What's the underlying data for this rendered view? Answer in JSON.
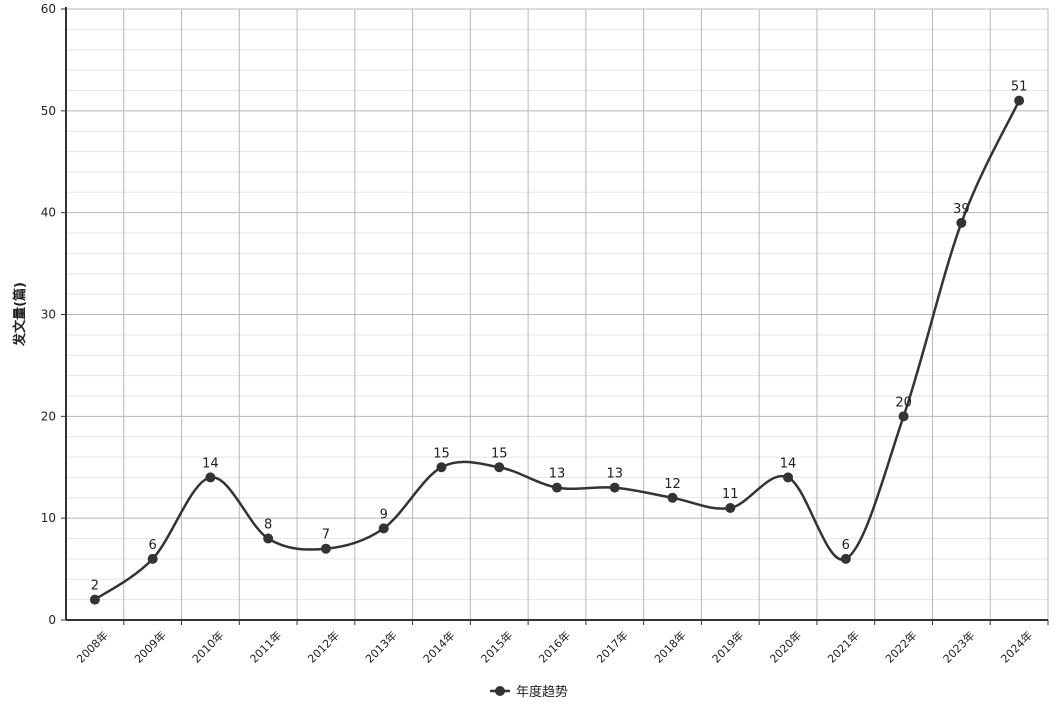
{
  "chart_data": {
    "type": "line",
    "title": "",
    "xlabel": "",
    "ylabel": "发文量(篇)",
    "categories": [
      "2008年",
      "2009年",
      "2010年",
      "2011年",
      "2012年",
      "2013年",
      "2014年",
      "2015年",
      "2016年",
      "2017年",
      "2018年",
      "2019年",
      "2020年",
      "2021年",
      "2022年",
      "2023年",
      "2024年"
    ],
    "series": [
      {
        "name": "年度趋势",
        "values": [
          2,
          6,
          14,
          8,
          7,
          9,
          15,
          15,
          13,
          13,
          12,
          11,
          14,
          6,
          20,
          39,
          51
        ]
      }
    ],
    "data_labels": [
      "2",
      "6",
      "14",
      "8",
      "7",
      "9",
      "15",
      "15",
      "13",
      "13",
      "12",
      "11",
      "14",
      "6",
      "20",
      "39",
      "51"
    ],
    "ylim": [
      0,
      60
    ],
    "yticks": [
      "0",
      "10",
      "20",
      "30",
      "40",
      "50",
      "60"
    ],
    "grid": true,
    "smooth": true,
    "legend_position": "bottom-center",
    "colors": {
      "line": "#333333",
      "grid_major": "#b8b8b8",
      "grid_minor": "#e6e6e6",
      "axis": "#333333"
    }
  }
}
